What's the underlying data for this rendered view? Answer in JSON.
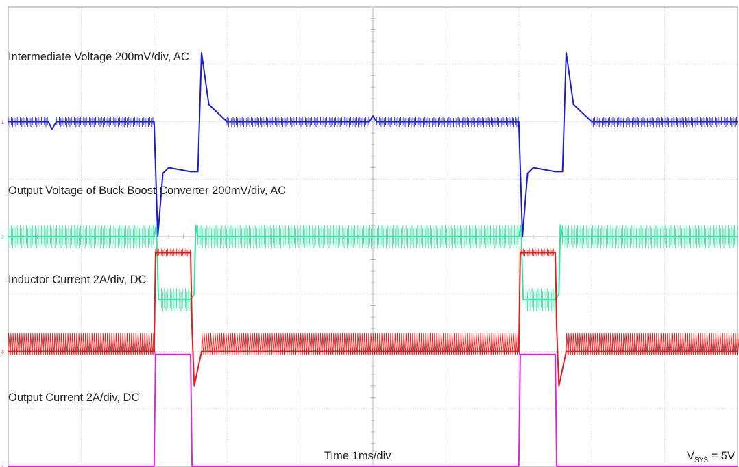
{
  "chart_data": {
    "type": "line",
    "title": "",
    "xlabel": "Time 1ms/div",
    "annotation": {
      "prefix": "V",
      "subscript": "SYS",
      "suffix": " = 5V"
    },
    "grid": true,
    "x_unit": "ms",
    "xlim": [
      0,
      10
    ],
    "ylim": [
      -4,
      4
    ],
    "colors": {
      "ch1": "#1a1adb",
      "ch2": "#2ee59a",
      "ch3": "#e81a1a",
      "ch4": "#e61ee6",
      "grid": "#b8b8b8",
      "frame": "#999999"
    },
    "series": [
      {
        "id": "ch1",
        "marker": "1",
        "name": "Intermediate Voltage 200mV/div, AC",
        "x": [
          0,
          0.55,
          0.6,
          0.66,
          2.0,
          2.05,
          2.12,
          2.2,
          2.5,
          2.55,
          2.6,
          2.65,
          2.75,
          3.0,
          4.95,
          5.0,
          5.05,
          7.0,
          7.05,
          7.12,
          7.2,
          7.5,
          7.55,
          7.6,
          7.65,
          7.75,
          8.0,
          10
        ],
        "y": [
          2.0,
          2.0,
          1.87,
          2.0,
          2.0,
          0.0,
          1.1,
          1.2,
          1.13,
          1.13,
          1.13,
          3.2,
          2.3,
          2.0,
          2.0,
          2.1,
          2.0,
          2.0,
          0.0,
          1.1,
          1.2,
          1.13,
          1.13,
          1.13,
          3.2,
          2.3,
          2.0,
          2.0
        ]
      },
      {
        "id": "ch2",
        "marker": "2",
        "name": "Output Voltage of Buck Boost Converter 200mV/div, AC",
        "x": [
          0,
          2.0,
          2.03,
          2.06,
          2.1,
          2.5,
          2.55,
          2.57,
          2.6,
          7.0,
          7.03,
          7.06,
          7.1,
          7.5,
          7.55,
          7.57,
          7.6,
          10
        ],
        "y": [
          0.0,
          0.0,
          0.2,
          -1.1,
          -1.1,
          -1.1,
          -1.0,
          0.2,
          0.0,
          0.0,
          0.2,
          -1.1,
          -1.1,
          -1.1,
          -1.0,
          0.2,
          0.0,
          0.0
        ]
      },
      {
        "id": "ch3",
        "marker": "3",
        "name": "Inductor Current 2A/div, DC",
        "x": [
          0,
          2.0,
          2.02,
          2.5,
          2.52,
          2.55,
          2.65,
          7.0,
          7.02,
          7.5,
          7.52,
          7.55,
          7.65,
          10
        ],
        "y": [
          -2.0,
          -2.0,
          -0.28,
          -0.28,
          -1.6,
          -2.6,
          -2.0,
          -2.0,
          -0.28,
          -0.28,
          -1.6,
          -2.6,
          -2.0,
          -2.0
        ]
      },
      {
        "id": "ch4",
        "marker": "4",
        "name": "Output Current 2A/div, DC",
        "x": [
          0,
          2.0,
          2.02,
          2.5,
          2.52,
          7.0,
          7.02,
          7.5,
          7.52,
          10
        ],
        "y": [
          -4.0,
          -4.0,
          -2.05,
          -2.05,
          -4.0,
          -4.0,
          -2.05,
          -2.05,
          -4.0,
          -4.0
        ]
      }
    ]
  }
}
